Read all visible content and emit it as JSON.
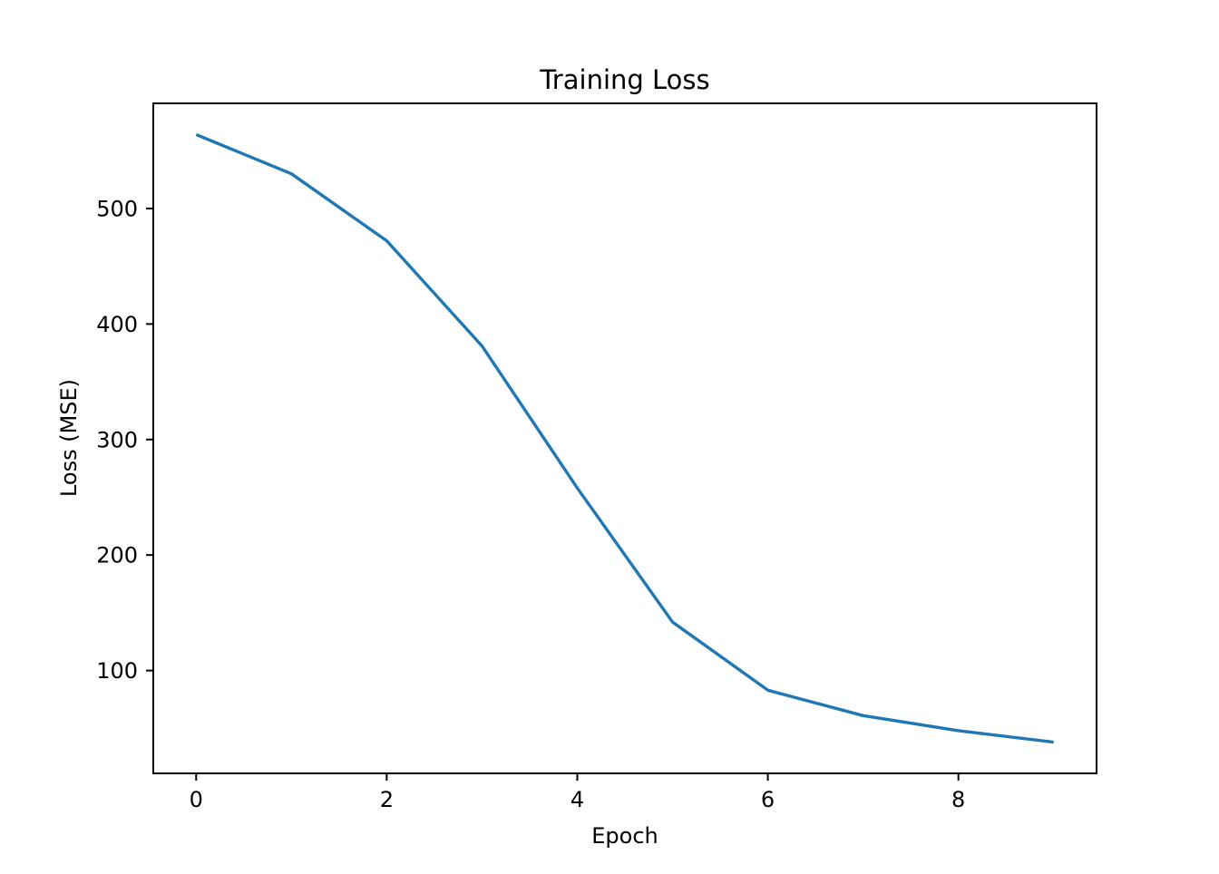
{
  "figure": {
    "background_color": "#ffffff",
    "spine_color": "#000000"
  },
  "chart_data": {
    "type": "line",
    "title": "Training Loss",
    "xlabel": "Epoch",
    "ylabel": "Loss (MSE)",
    "x": [
      0,
      1,
      2,
      3,
      4,
      5,
      6,
      7,
      8,
      9
    ],
    "y": [
      564,
      530,
      472,
      381,
      258,
      142,
      83,
      61,
      48,
      38
    ],
    "series_name": "training-loss",
    "xticks": [
      0,
      2,
      4,
      6,
      8
    ],
    "yticks": [
      100,
      200,
      300,
      400,
      500
    ],
    "xlim": [
      -0.45,
      9.45
    ],
    "ylim": [
      11,
      591
    ],
    "grid": false,
    "legend_position": "none",
    "line_color": "#1f77b4",
    "line_width": 3.4
  }
}
